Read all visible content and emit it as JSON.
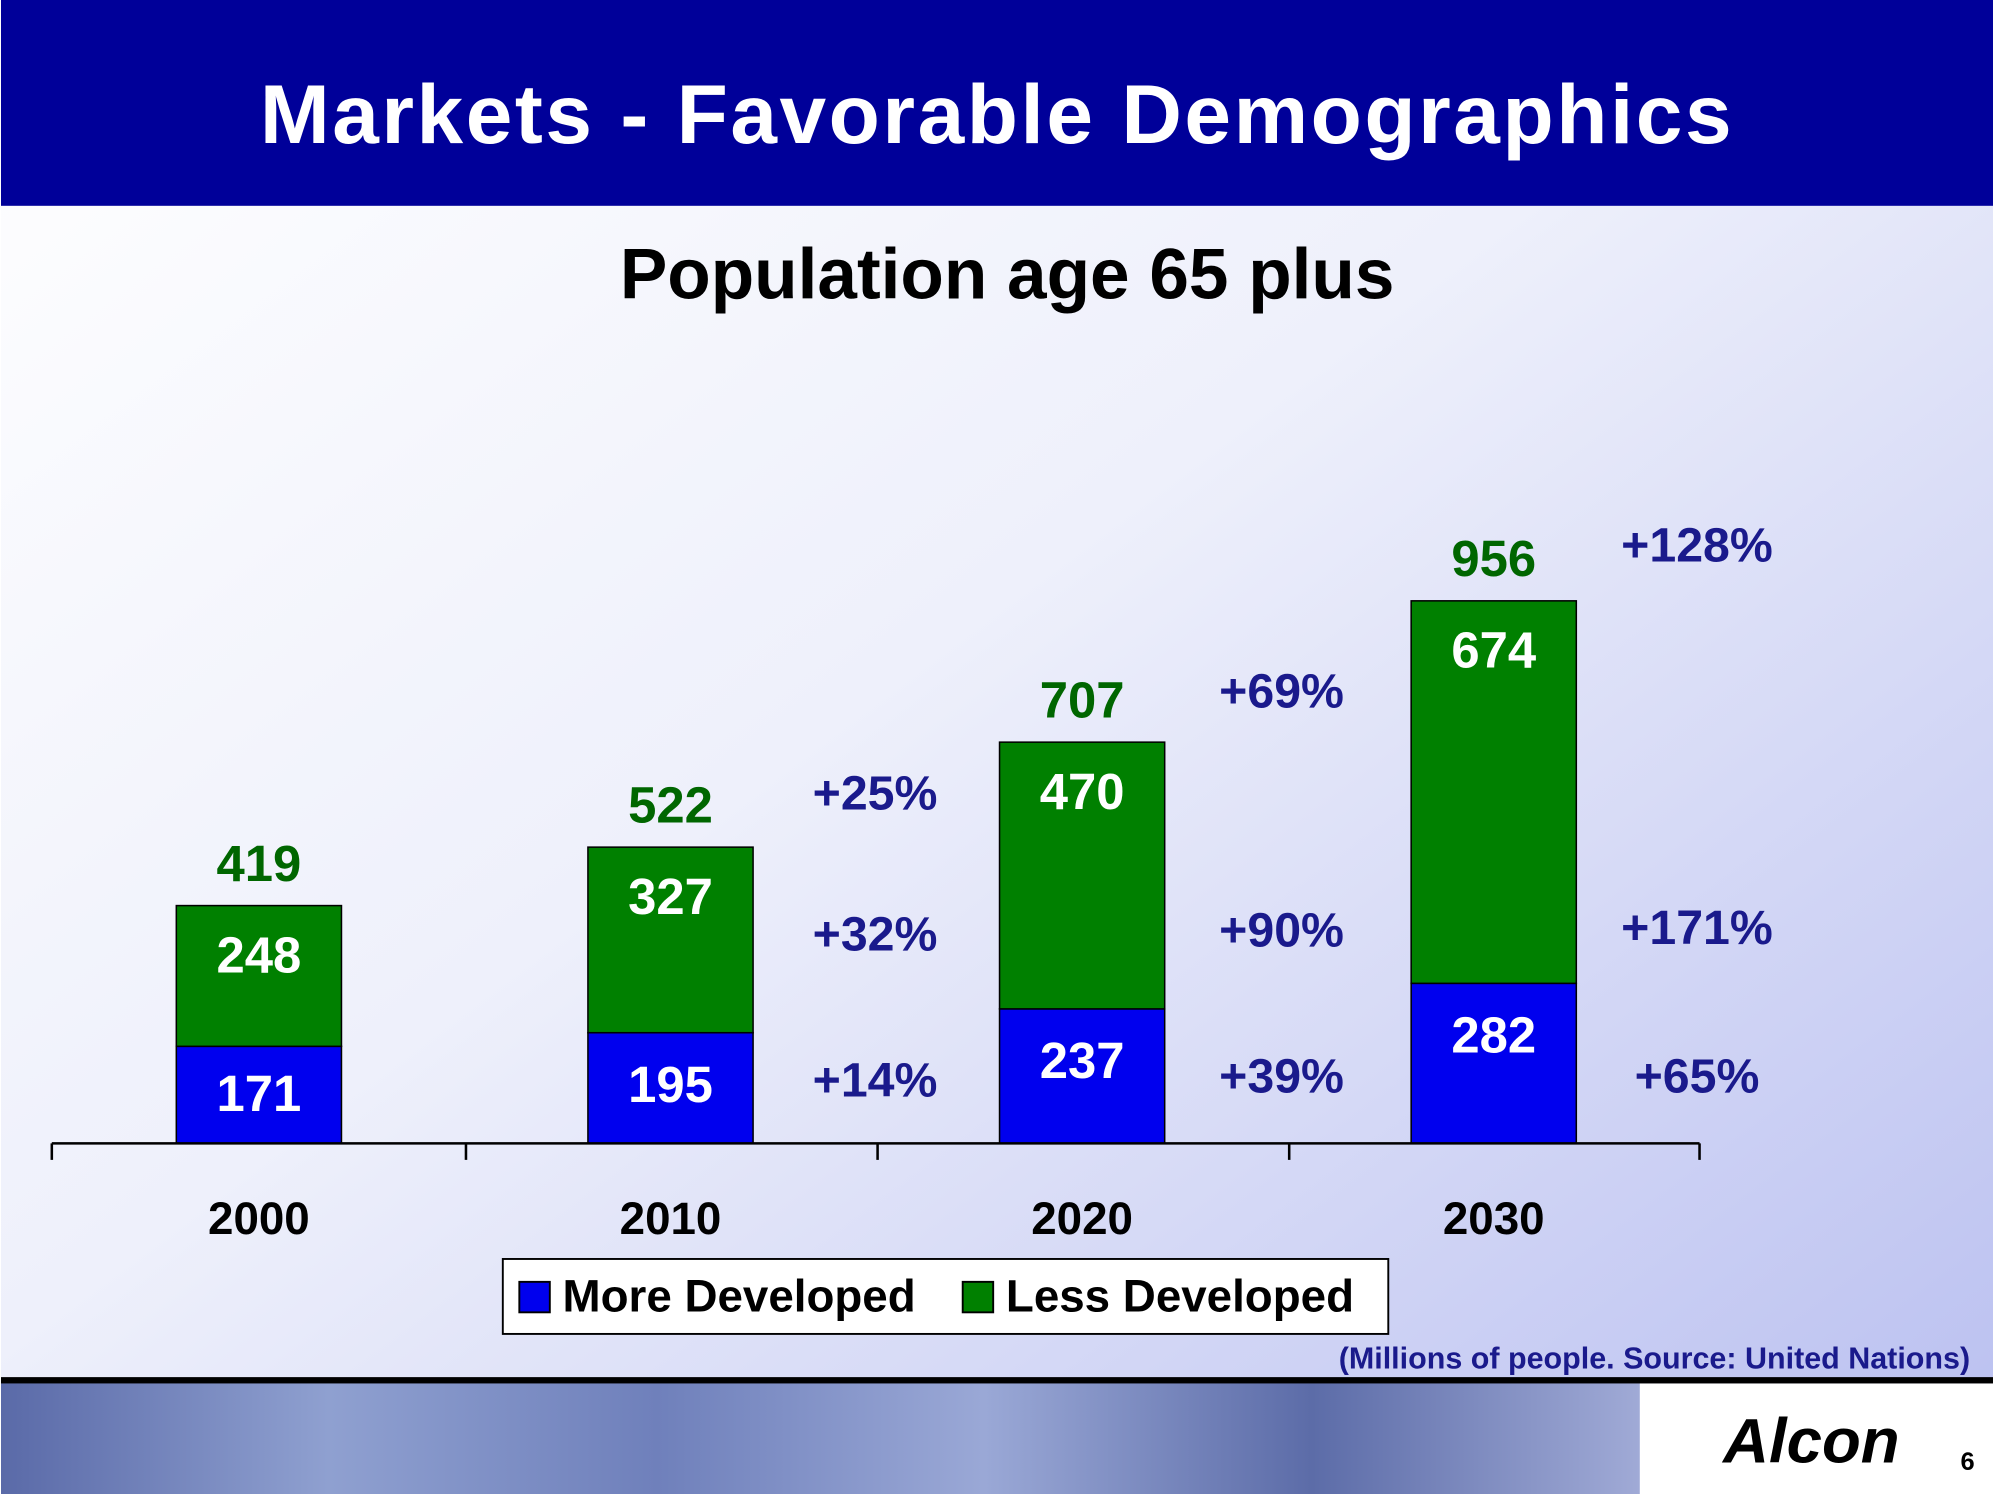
{
  "header": {
    "title": "Markets - Favorable Demographics"
  },
  "chart_data": {
    "type": "bar",
    "stacked": true,
    "title": "Population age 65 plus",
    "categories": [
      "2000",
      "2010",
      "2020",
      "2030"
    ],
    "series": [
      {
        "name": "More Developed",
        "color": "#0000ee",
        "values": [
          171,
          195,
          237,
          282
        ]
      },
      {
        "name": "Less Developed",
        "color": "#008000",
        "values": [
          248,
          327,
          470,
          674
        ]
      }
    ],
    "totals": [
      419,
      522,
      707,
      956
    ],
    "total_color": "#006600",
    "growth_labels": {
      "total": [
        "+25%",
        "+69%",
        "+128%"
      ],
      "less": [
        "+32%",
        "+90%",
        "+171%"
      ],
      "more": [
        "+14%",
        "+39%",
        "+65%"
      ]
    },
    "growth_color": "#1a1a8c",
    "note": "(Millions of people.  Source:  United Nations)"
  },
  "footer": {
    "logo": "Alcon",
    "page_number": "6"
  }
}
